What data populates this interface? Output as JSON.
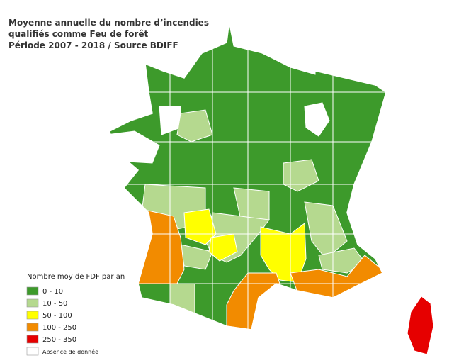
{
  "title_lines": [
    "Moyenne annuelle du nombre d’incendies",
    "qualifiés comme Feu de forêt",
    "Période 2007 - 2018 / Source BDIFF"
  ],
  "legend": {
    "title": "Nombre moy de FDF par an",
    "items": [
      {
        "label": "0 - 10",
        "color": "#3d9a2b"
      },
      {
        "label": "10 - 50",
        "color": "#b5d98f"
      },
      {
        "label": "50 - 100",
        "color": "#ffff00"
      },
      {
        "label": "100 - 250",
        "color": "#f28b00"
      },
      {
        "label": "250 - 350",
        "color": "#e60000"
      },
      {
        "label": "Absence de donnée",
        "color": "#ffffff"
      }
    ]
  }
}
